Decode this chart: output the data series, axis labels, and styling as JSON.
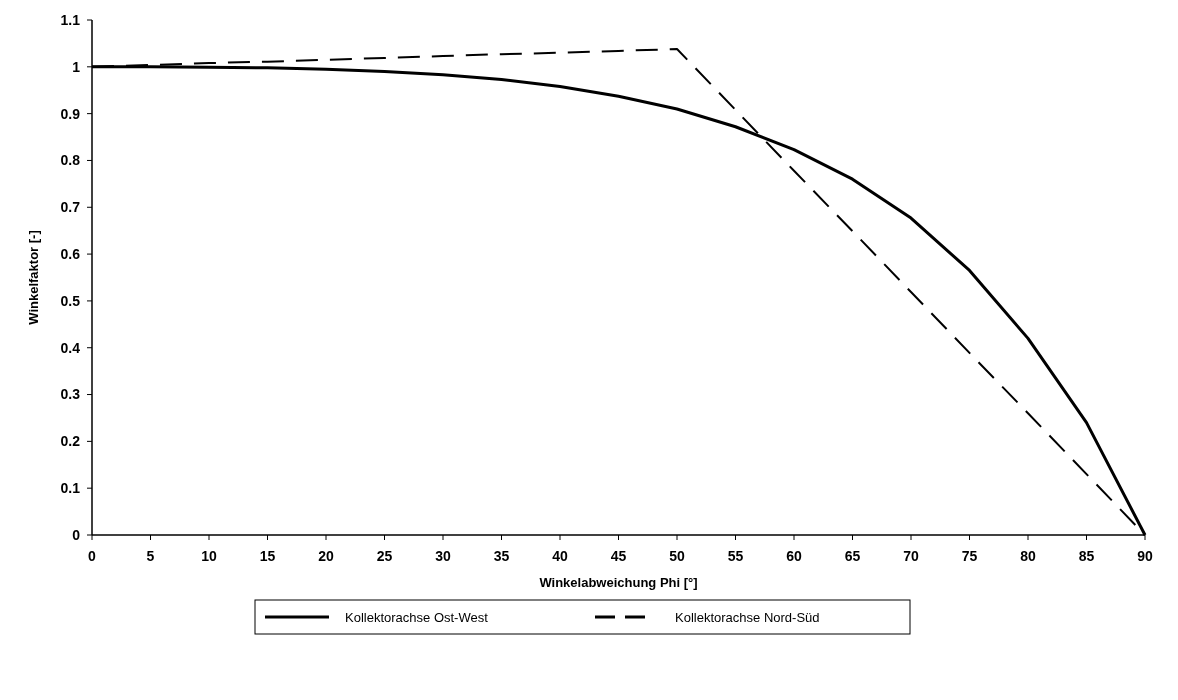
{
  "chart_data": {
    "type": "line",
    "xlabel": "Winkelabweichung Phi [°]",
    "ylabel": "Winkelfaktor [-]",
    "x": [
      0,
      5,
      10,
      15,
      20,
      25,
      30,
      35,
      40,
      45,
      50,
      55,
      60,
      65,
      70,
      75,
      80,
      85,
      90
    ],
    "xlim": [
      0,
      90
    ],
    "xticks": [
      0,
      5,
      10,
      15,
      20,
      25,
      30,
      35,
      40,
      45,
      50,
      55,
      60,
      65,
      70,
      75,
      80,
      85,
      90
    ],
    "ylim": [
      0,
      1.1
    ],
    "yticks": [
      0,
      0.1,
      0.2,
      0.3,
      0.4,
      0.5,
      0.6,
      0.7,
      0.8,
      0.9,
      1,
      1.1
    ],
    "grid": false,
    "legend": "bottom",
    "marker": "none",
    "series": [
      {
        "name": "Kollektorachse Ost-West",
        "color": "#000000",
        "line_style": "solid",
        "values": [
          1,
          1,
          0.999,
          0.998,
          0.995,
          0.99,
          0.983,
          0.973,
          0.958,
          0.937,
          0.91,
          0.872,
          0.823,
          0.76,
          0.677,
          0.565,
          0.42,
          0.24,
          0
        ]
      },
      {
        "name": "Kollektorachse Nord-Süd",
        "color": "#000000",
        "line_style": "dashed",
        "values": [
          1,
          1.004,
          1.008,
          1.011,
          1.015,
          1.019,
          1.023,
          1.027,
          1.03,
          1.034,
          1.038,
          0.908,
          0.778,
          0.649,
          0.519,
          0.389,
          0.26,
          0.13,
          0
        ]
      }
    ]
  }
}
